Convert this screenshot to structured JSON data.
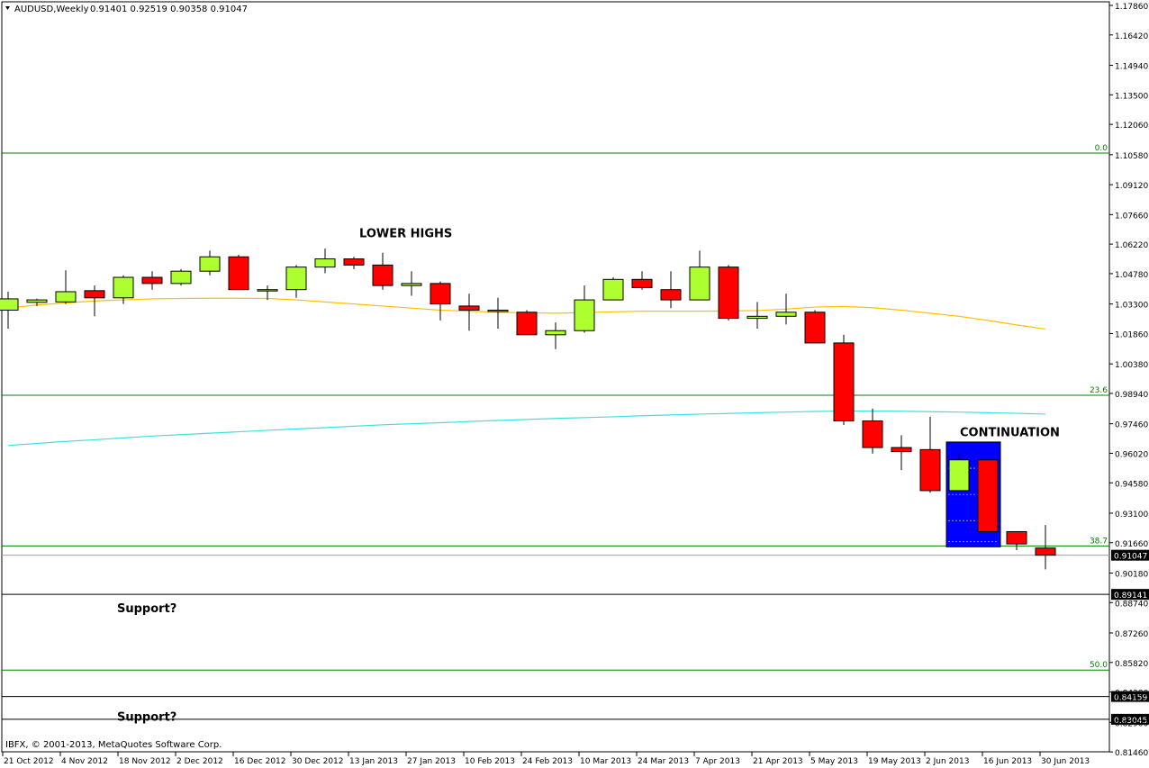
{
  "header": {
    "symbol_timeframe": "AUDUSD,Weekly",
    "ohlc": "0.91401 0.92519 0.90358 0.91047"
  },
  "footer": {
    "copyright": "IBFX, © 2001-2013, MetaQuotes Software Corp."
  },
  "colors": {
    "bull": "#adff2f",
    "bear": "#ff0000",
    "ma_fast": "#ffc000",
    "ma_slow": "#40e0e0",
    "fib": "#008000",
    "highlight": "#0000ff"
  },
  "chart_data": {
    "type": "candlestick",
    "title": "",
    "ylim": [
      0.8164,
      1.1786
    ],
    "y_ticks": [
      "1.17860",
      "1.16420",
      "1.14940",
      "1.13500",
      "1.12060",
      "1.10580",
      "1.09120",
      "1.07660",
      "1.06220",
      "1.04780",
      "1.03300",
      "1.01860",
      "1.00380",
      "0.98940",
      "0.97460",
      "0.96020",
      "0.94580",
      "0.93100",
      "0.91660",
      "0.90180",
      "0.88740",
      "0.87260",
      "0.85820",
      "0.84380",
      "0.82900",
      "0.81460"
    ],
    "x_ticks": [
      "21 Oct 2012",
      "4 Nov 2012",
      "18 Nov 2012",
      "2 Dec 2012",
      "16 Dec 2012",
      "30 Dec 2012",
      "13 Jan 2013",
      "27 Jan 2013",
      "10 Feb 2013",
      "24 Feb 2013",
      "10 Mar 2013",
      "24 Mar 2013",
      "7 Apr 2013",
      "21 Apr 2013",
      "5 May 2013",
      "19 May 2013",
      "2 Jun 2013",
      "16 Jun 2013",
      "30 Jun 2013"
    ],
    "candles": [
      {
        "o": 1.03,
        "h": 1.039,
        "l": 1.021,
        "c": 1.0355
      },
      {
        "o": 1.0338,
        "h": 1.0356,
        "l": 1.032,
        "c": 1.035
      },
      {
        "o": 1.034,
        "h": 1.0494,
        "l": 1.033,
        "c": 1.039
      },
      {
        "o": 1.0395,
        "h": 1.042,
        "l": 1.027,
        "c": 1.036
      },
      {
        "o": 1.036,
        "h": 1.047,
        "l": 1.033,
        "c": 1.046
      },
      {
        "o": 1.046,
        "h": 1.049,
        "l": 1.04,
        "c": 1.043
      },
      {
        "o": 1.043,
        "h": 1.05,
        "l": 1.042,
        "c": 1.049
      },
      {
        "o": 1.049,
        "h": 1.059,
        "l": 1.047,
        "c": 1.056
      },
      {
        "o": 1.056,
        "h": 1.057,
        "l": 1.04,
        "c": 1.04
      },
      {
        "o": 1.04,
        "h": 1.042,
        "l": 1.035,
        "c": 1.04
      },
      {
        "o": 1.04,
        "h": 1.052,
        "l": 1.036,
        "c": 1.051
      },
      {
        "o": 1.051,
        "h": 1.06,
        "l": 1.048,
        "c": 1.055
      },
      {
        "o": 1.055,
        "h": 1.056,
        "l": 1.05,
        "c": 1.052
      },
      {
        "o": 1.052,
        "h": 1.058,
        "l": 1.04,
        "c": 1.042
      },
      {
        "o": 1.042,
        "h": 1.049,
        "l": 1.037,
        "c": 1.043
      },
      {
        "o": 1.043,
        "h": 1.044,
        "l": 1.025,
        "c": 1.033
      },
      {
        "o": 1.032,
        "h": 1.038,
        "l": 1.02,
        "c": 1.03
      },
      {
        "o": 1.03,
        "h": 1.036,
        "l": 1.021,
        "c": 1.03
      },
      {
        "o": 1.029,
        "h": 1.03,
        "l": 1.018,
        "c": 1.018
      },
      {
        "o": 1.018,
        "h": 1.024,
        "l": 1.011,
        "c": 1.02
      },
      {
        "o": 1.02,
        "h": 1.042,
        "l": 1.019,
        "c": 1.035
      },
      {
        "o": 1.035,
        "h": 1.046,
        "l": 1.035,
        "c": 1.045
      },
      {
        "o": 1.045,
        "h": 1.049,
        "l": 1.04,
        "c": 1.041
      },
      {
        "o": 1.04,
        "h": 1.049,
        "l": 1.031,
        "c": 1.035
      },
      {
        "o": 1.035,
        "h": 1.059,
        "l": 1.035,
        "c": 1.051
      },
      {
        "o": 1.051,
        "h": 1.052,
        "l": 1.025,
        "c": 1.026
      },
      {
        "o": 1.026,
        "h": 1.034,
        "l": 1.021,
        "c": 1.027
      },
      {
        "o": 1.027,
        "h": 1.038,
        "l": 1.023,
        "c": 1.029
      },
      {
        "o": 1.029,
        "h": 1.03,
        "l": 1.014,
        "c": 1.014
      },
      {
        "o": 1.014,
        "h": 1.018,
        "l": 0.974,
        "c": 0.976
      },
      {
        "o": 0.976,
        "h": 0.982,
        "l": 0.96,
        "c": 0.963
      },
      {
        "o": 0.963,
        "h": 0.969,
        "l": 0.952,
        "c": 0.961
      },
      {
        "o": 0.962,
        "h": 0.978,
        "l": 0.941,
        "c": 0.942
      },
      {
        "o": 0.942,
        "h": 0.96,
        "l": 0.942,
        "c": 0.957
      },
      {
        "o": 0.957,
        "h": 0.957,
        "l": 0.922,
        "c": 0.922
      },
      {
        "o": 0.922,
        "h": 0.922,
        "l": 0.913,
        "c": 0.916
      },
      {
        "o": 0.914,
        "h": 0.9252,
        "l": 0.9036,
        "c": 0.9105
      }
    ],
    "ma_fast": [
      1.031,
      1.0325,
      1.0335,
      1.0345,
      1.035,
      1.0355,
      1.0357,
      1.0358,
      1.0358,
      1.0357,
      1.035,
      1.034,
      1.033,
      1.032,
      1.031,
      1.03,
      1.0295,
      1.029,
      1.0287,
      1.0285,
      1.0288,
      1.0292,
      1.0295,
      1.0295,
      1.0295,
      1.0296,
      1.0298,
      1.0305,
      1.0315,
      1.0318,
      1.0312,
      1.03,
      1.0285,
      1.027,
      1.025,
      1.0228,
      1.0208
    ],
    "ma_slow": [
      0.964,
      0.965,
      0.966,
      0.9668,
      0.9677,
      0.9686,
      0.9693,
      0.97,
      0.9707,
      0.9714,
      0.9721,
      0.9727,
      0.9734,
      0.9741,
      0.9746,
      0.9751,
      0.9757,
      0.9762,
      0.9767,
      0.9772,
      0.9776,
      0.978,
      0.9785,
      0.9789,
      0.9793,
      0.9796,
      0.98,
      0.9803,
      0.9806,
      0.9808,
      0.9808,
      0.9807,
      0.9805,
      0.9803,
      0.98,
      0.9797,
      0.9793
    ],
    "fib_levels": [
      {
        "label": "0.0",
        "value": 1.1066
      },
      {
        "label": "23.6",
        "value": 0.9885
      },
      {
        "label": "38.7",
        "value": 0.915
      },
      {
        "label": "50.0",
        "value": 0.8545
      }
    ],
    "hlines": [
      {
        "label": "0.91047",
        "value": 0.9105,
        "style": "gray",
        "marker": true
      },
      {
        "label": "0.89141",
        "value": 0.8914,
        "style": "black",
        "marker": true
      },
      {
        "label": "0.84159",
        "value": 0.8416,
        "style": "black",
        "marker": true
      },
      {
        "label": "0.83045",
        "value": 0.8305,
        "style": "black",
        "marker": true
      }
    ],
    "highlight": {
      "from_index": 33,
      "to_index": 34,
      "top": 0.9657,
      "bottom": 0.9146
    },
    "annotations": [
      {
        "text": "LOWER HIGHS",
        "near_index": 12,
        "value": 1.0655
      },
      {
        "text": "CONTINUATION",
        "near_index": 33,
        "value": 0.9685
      },
      {
        "text": "Support?",
        "near_index": 1,
        "value": 0.8827
      },
      {
        "text": "Support?",
        "near_index": 1,
        "value": 0.8299
      }
    ]
  }
}
